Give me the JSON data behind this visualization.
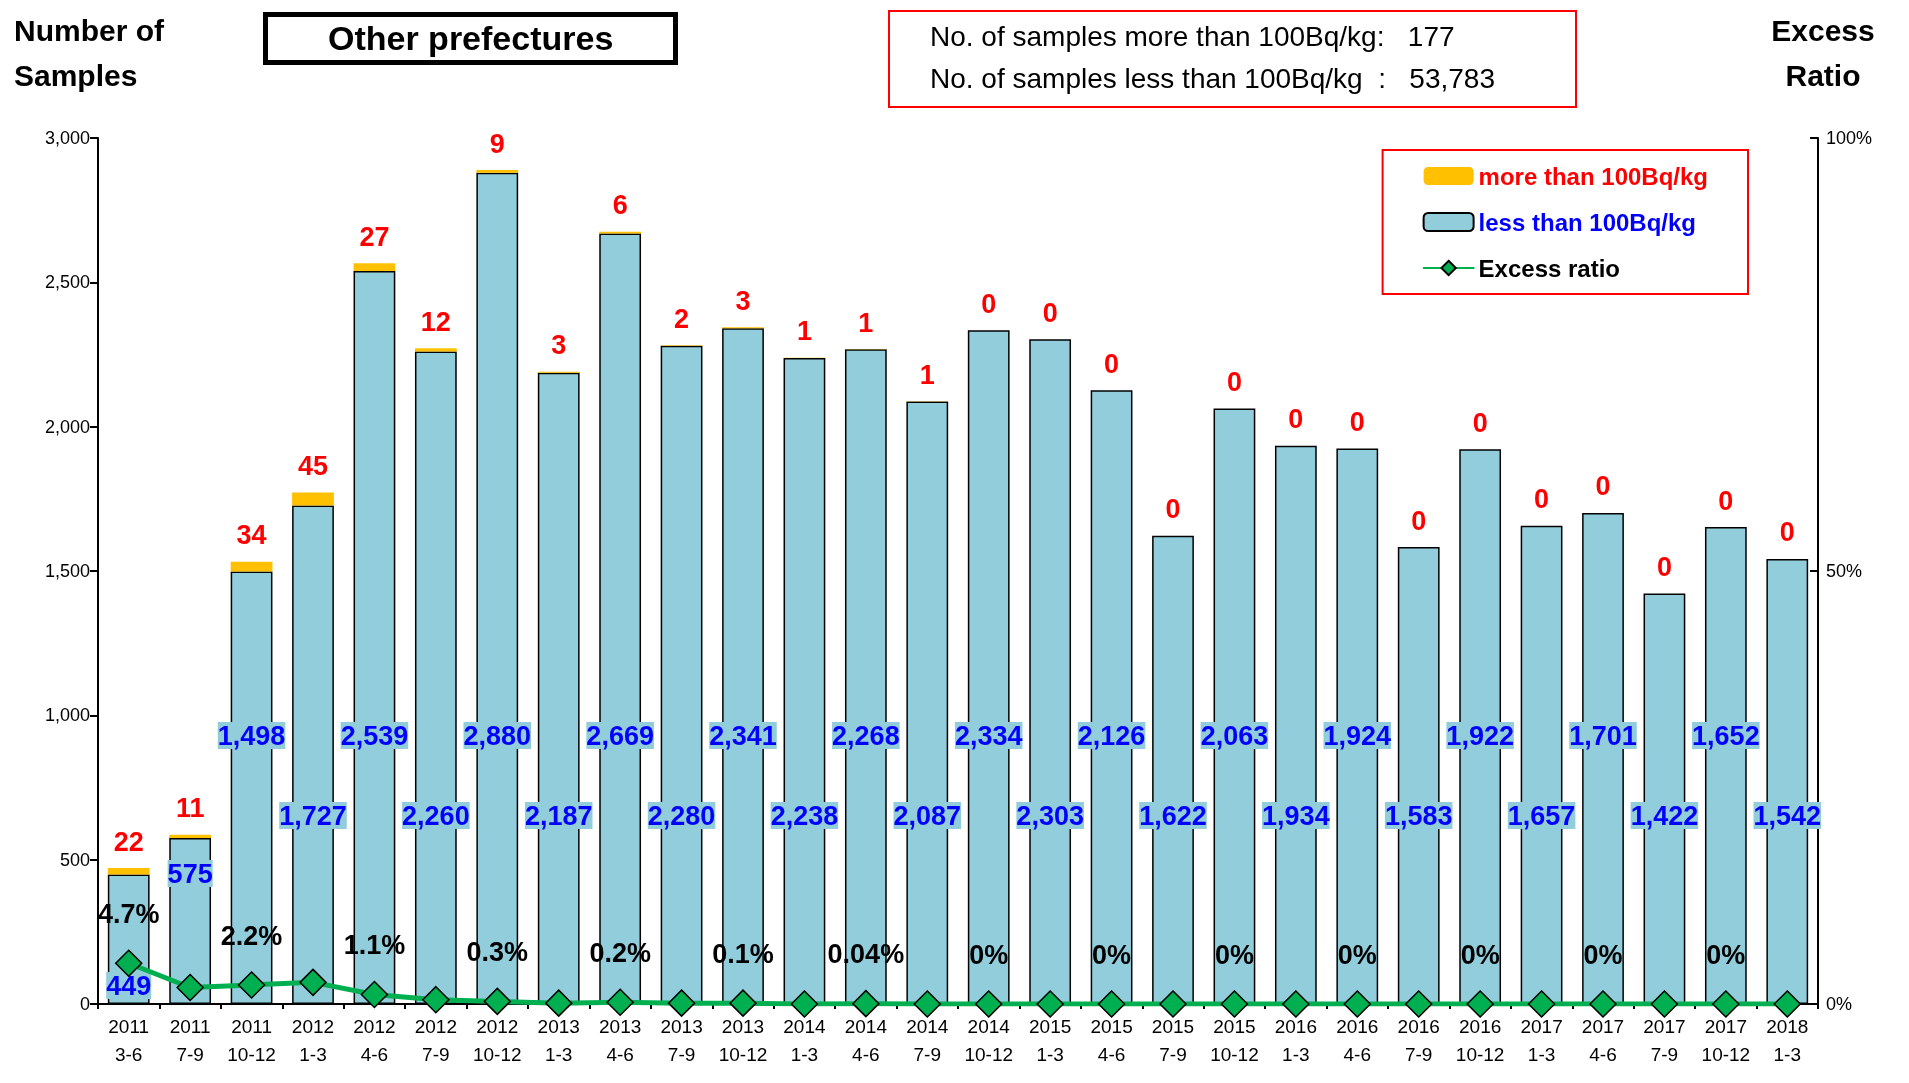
{
  "chart_data": {
    "type": "bar",
    "title": "Other prefectures",
    "ylabel": "Number of Samples",
    "y2label": "Excess Ratio",
    "annotations": [
      "No. of samples more than 100Bq/kg:   177",
      "No. of samples less than 100Bq/kg  :   53,783"
    ],
    "categories": [
      "2011\n3-6",
      "2011\n7-9",
      "2011\n10-12",
      "2012\n1-3",
      "2012\n4-6",
      "2012\n7-9",
      "2012\n10-12",
      "2013\n1-3",
      "2013\n4-6",
      "2013\n7-9",
      "2013\n10-12",
      "2014\n1-3",
      "2014\n4-6",
      "2014\n7-9",
      "2014\n10-12",
      "2015\n1-3",
      "2015\n4-6",
      "2015\n7-9",
      "2015\n10-12",
      "2016\n1-3",
      "2016\n4-6",
      "2016\n7-9",
      "2016\n10-12",
      "2017\n1-3",
      "2017\n4-6",
      "2017\n7-9",
      "2017\n10-12",
      "2018\n1-3"
    ],
    "stacked": true,
    "data_labels": true,
    "series": [
      {
        "name": "less than 100Bq/kg",
        "color": "#92cddc",
        "values": [
          449,
          575,
          1498,
          1727,
          2539,
          2260,
          2880,
          2187,
          2669,
          2280,
          2341,
          2238,
          2268,
          2087,
          2334,
          2303,
          2126,
          1622,
          2063,
          1934,
          1924,
          1583,
          1922,
          1657,
          1701,
          1422,
          1652,
          1542
        ],
        "value_labels": [
          "449",
          "575",
          "1,498",
          "1,727",
          "2,539",
          "2,260",
          "2,880",
          "2,187",
          "2,669",
          "2,280",
          "2,341",
          "2,238",
          "2,268",
          "2,087",
          "2,334",
          "2,303",
          "2,126",
          "1,622",
          "2,063",
          "1,934",
          "1,924",
          "1,583",
          "1,922",
          "1,657",
          "1,701",
          "1,422",
          "1,652",
          "1,542"
        ]
      },
      {
        "name": "more than 100Bq/kg",
        "color": "#ffc000",
        "values": [
          22,
          11,
          34,
          45,
          27,
          12,
          9,
          3,
          6,
          2,
          3,
          1,
          1,
          1,
          0,
          0,
          0,
          0,
          0,
          0,
          0,
          0,
          0,
          0,
          0,
          0,
          0,
          0
        ]
      },
      {
        "name": "Excess ratio",
        "type": "line",
        "axis": "y2",
        "color": "#00b050",
        "marker": "diamond",
        "values": [
          4.7,
          1.9,
          2.2,
          2.5,
          1.1,
          0.5,
          0.3,
          0.1,
          0.2,
          0.1,
          0.1,
          0,
          0.04,
          0,
          0,
          0,
          0,
          0,
          0,
          0,
          0,
          0,
          0,
          0,
          0,
          0,
          0,
          0
        ],
        "value_labels": [
          "4.7%",
          null,
          "2.2%",
          null,
          "1.1%",
          null,
          "0.3%",
          null,
          "0.2%",
          null,
          "0.1%",
          null,
          "0.04%",
          null,
          "0%",
          null,
          "0%",
          null,
          "0%",
          null,
          "0%",
          null,
          "0%",
          null,
          "0%",
          null,
          "0%",
          null
        ]
      }
    ],
    "ylim": [
      0,
      3000
    ],
    "yticks": [
      0,
      {
        "value": 500,
        "label": "500"
      },
      {
        "value": 1000,
        "label": "1,000"
      },
      {
        "value": 1500,
        "label": "1,500"
      },
      {
        "value": 2000,
        "label": "2,000"
      },
      {
        "value": 2500,
        "label": "2,500"
      },
      {
        "value": 3000,
        "label": "3,000"
      }
    ],
    "y2lim": [
      0,
      100
    ],
    "y2ticks": [
      {
        "value": 0,
        "label": "0%"
      },
      {
        "value": 50,
        "label": "50%"
      },
      {
        "value": 100,
        "label": "100%"
      }
    ],
    "grid": false,
    "legend": "top right"
  }
}
